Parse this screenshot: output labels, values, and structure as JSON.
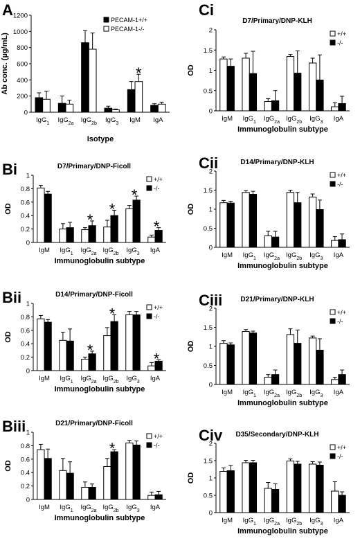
{
  "chart_data": [
    {
      "id": "A",
      "type": "bar",
      "panel_label": "A",
      "title": "",
      "xlabel": "Isotype",
      "ylabel": "Ab conc. (µg/mL)",
      "ylim": [
        0,
        1200
      ],
      "yticks": [
        "0",
        "200",
        "400",
        "600",
        "800",
        "1000",
        "1200"
      ],
      "categories": [
        "IgG1",
        "IgG2a",
        "IgG2b",
        "IgG3",
        "IgM",
        "IgA"
      ],
      "series": [
        {
          "name": "PECAM-1+/+",
          "color": "#000000",
          "values": [
            180,
            110,
            860,
            50,
            280,
            85
          ],
          "errors": [
            60,
            90,
            150,
            25,
            100,
            20
          ]
        },
        {
          "name": "PECAM-1-/-",
          "color": "#ffffff",
          "values": [
            160,
            100,
            780,
            30,
            380,
            100
          ],
          "errors": [
            100,
            50,
            200,
            10,
            90,
            25
          ]
        }
      ],
      "significant": [
        4
      ],
      "legend_position": "top-right"
    },
    {
      "id": "Bi",
      "type": "bar",
      "panel_label": "Bi",
      "title": "D7/Primary/DNP-Ficoll",
      "xlabel": "Immunoglobulin subtype",
      "ylabel": "OD",
      "ylim": [
        0,
        1
      ],
      "yticks": [
        "0",
        "0.2",
        "0.4",
        "0.6",
        "0.8",
        "1"
      ],
      "categories": [
        "IgM",
        "IgG1",
        "IgG2a",
        "IgG2b",
        "IgG3",
        "IgA"
      ],
      "series": [
        {
          "name": "+/+",
          "color": "#ffffff",
          "values": [
            0.81,
            0.2,
            0.19,
            0.23,
            0.5,
            0.08
          ],
          "errors": [
            0.04,
            0.08,
            0.03,
            0.1,
            0.05,
            0.03
          ]
        },
        {
          "name": "-/-",
          "color": "#000000",
          "values": [
            0.72,
            0.22,
            0.25,
            0.4,
            0.63,
            0.18
          ],
          "errors": [
            0.04,
            0.08,
            0.07,
            0.08,
            0.06,
            0.04
          ]
        }
      ],
      "significant": [
        2,
        3,
        4,
        5
      ],
      "legend_position": "top-right"
    },
    {
      "id": "Bii",
      "type": "bar",
      "panel_label": "Bii",
      "title": "D14/Primary/DNP-Ficoll",
      "xlabel": "Immunoglobulin subtype",
      "ylabel": "OD",
      "ylim": [
        0,
        1
      ],
      "yticks": [
        "0",
        "0.2",
        "0.4",
        "0.6",
        "0.8",
        "1"
      ],
      "categories": [
        "IgM",
        "IgG1",
        "IgG2a",
        "IgG2b",
        "IgG3",
        "IgA"
      ],
      "series": [
        {
          "name": "+/+",
          "color": "#ffffff",
          "values": [
            0.77,
            0.45,
            0.17,
            0.52,
            0.83,
            0.07
          ],
          "errors": [
            0.05,
            0.12,
            0.03,
            0.12,
            0.05,
            0.05
          ]
        },
        {
          "name": "-/-",
          "color": "#000000",
          "values": [
            0.72,
            0.44,
            0.25,
            0.73,
            0.83,
            0.14
          ],
          "errors": [
            0.04,
            0.18,
            0.04,
            0.1,
            0.05,
            0.02
          ]
        }
      ],
      "significant": [
        2,
        3,
        5
      ],
      "legend_position": "top-right"
    },
    {
      "id": "Biii",
      "type": "bar",
      "panel_label": "Biii",
      "title": "D21/Primary/DNP-Ficoll",
      "xlabel": "Immunoglobulin subtype",
      "ylabel": "OD",
      "ylim": [
        0,
        1
      ],
      "yticks": [
        "0",
        "0.2",
        "0.4",
        "0.6",
        "0.8",
        "1"
      ],
      "categories": [
        "IgM",
        "IgG1",
        "IgG2a",
        "IgG2b",
        "IgG3",
        "IgA"
      ],
      "series": [
        {
          "name": "+/+",
          "color": "#ffffff",
          "values": [
            0.74,
            0.43,
            0.18,
            0.49,
            0.84,
            0.06
          ],
          "errors": [
            0.08,
            0.18,
            0.08,
            0.12,
            0.04,
            0.05
          ]
        },
        {
          "name": "-/-",
          "color": "#000000",
          "values": [
            0.61,
            0.39,
            0.18,
            0.71,
            0.81,
            0.07
          ],
          "errors": [
            0.14,
            0.17,
            0.05,
            0.03,
            0.06,
            0.05
          ]
        }
      ],
      "significant": [
        3
      ],
      "legend_position": "top-right"
    },
    {
      "id": "Ci",
      "type": "bar",
      "panel_label": "Ci",
      "title": "D7/Primary/DNP-KLH",
      "xlabel": "Immunoglobulin subtype",
      "ylabel": "OD",
      "ylim": [
        0,
        2
      ],
      "yticks": [
        "0",
        "0.5",
        "1",
        "1.5",
        "2"
      ],
      "categories": [
        "IgM",
        "IgG1",
        "IgG2a",
        "IgG2b",
        "IgG3",
        "IgA"
      ],
      "series": [
        {
          "name": "+/+",
          "color": "#ffffff",
          "values": [
            1.28,
            1.3,
            0.23,
            1.34,
            1.18,
            0.1
          ],
          "errors": [
            0.05,
            0.12,
            0.07,
            0.05,
            0.12,
            0.1
          ]
        },
        {
          "name": "-/-",
          "color": "#000000",
          "values": [
            1.1,
            0.92,
            0.25,
            0.93,
            0.76,
            0.18
          ],
          "errors": [
            0.18,
            0.55,
            0.25,
            0.55,
            0.62,
            0.18
          ]
        }
      ],
      "significant": [],
      "legend_position": "top-right"
    },
    {
      "id": "Cii",
      "type": "bar",
      "panel_label": "Cii",
      "title": "D14/Primary/DNP-KLH",
      "xlabel": "Immunoglobulin subtype",
      "ylabel": "OD",
      "ylim": [
        0,
        2
      ],
      "yticks": [
        "0",
        "0.5",
        "1",
        "1.5",
        "2"
      ],
      "categories": [
        "IgM",
        "IgG1",
        "IgG2a",
        "IgG2b",
        "IgG3",
        "IgA"
      ],
      "series": [
        {
          "name": "+/+",
          "color": "#ffffff",
          "values": [
            1.17,
            1.44,
            0.3,
            1.44,
            1.32,
            0.18
          ],
          "errors": [
            0.06,
            0.05,
            0.12,
            0.06,
            0.08,
            0.1
          ]
        },
        {
          "name": "-/-",
          "color": "#000000",
          "values": [
            1.16,
            1.39,
            0.27,
            1.17,
            0.99,
            0.2
          ],
          "errors": [
            0.05,
            0.08,
            0.15,
            0.27,
            0.25,
            0.15
          ]
        }
      ],
      "significant": [],
      "legend_position": "top-right"
    },
    {
      "id": "Ciii",
      "type": "bar",
      "panel_label": "Ciii",
      "title": "D21/Primary/DNP-KLH",
      "xlabel": "Immunoglobulin subtype",
      "ylabel": "OD",
      "ylim": [
        0,
        2
      ],
      "yticks": [
        "0",
        "0.5",
        "1",
        "1.5",
        "2"
      ],
      "categories": [
        "IgM",
        "IgG1",
        "IgG2a",
        "IgG2b",
        "IgG3",
        "IgA"
      ],
      "series": [
        {
          "name": "+/+",
          "color": "#ffffff",
          "values": [
            1.08,
            1.39,
            0.19,
            1.31,
            1.22,
            0.13
          ],
          "errors": [
            0.07,
            0.05,
            0.07,
            0.15,
            0.05,
            0.06
          ]
        },
        {
          "name": "-/-",
          "color": "#000000",
          "values": [
            1.04,
            1.35,
            0.26,
            1.08,
            0.9,
            0.26
          ],
          "errors": [
            0.05,
            0.05,
            0.12,
            0.35,
            0.3,
            0.12
          ]
        }
      ],
      "significant": [],
      "legend_position": "top-right"
    },
    {
      "id": "Civ",
      "type": "bar",
      "panel_label": "Civ",
      "title": "D35/Secondary/DNP-KLH",
      "xlabel": "Immunoglobulin subtype",
      "ylabel": "OD",
      "ylim": [
        0,
        2
      ],
      "yticks": [
        "0",
        "0.5",
        "1",
        "1.5",
        "2"
      ],
      "categories": [
        "IgM",
        "IgG1",
        "IgG2a",
        "IgG2b",
        "IgG3",
        "IgA"
      ],
      "series": [
        {
          "name": "+/+",
          "color": "#ffffff",
          "values": [
            1.19,
            1.44,
            0.7,
            1.49,
            1.4,
            0.62
          ],
          "errors": [
            0.1,
            0.07,
            0.17,
            0.06,
            0.07,
            0.27
          ]
        },
        {
          "name": "-/-",
          "color": "#000000",
          "values": [
            1.21,
            1.44,
            0.67,
            1.4,
            1.37,
            0.5
          ],
          "errors": [
            0.15,
            0.07,
            0.16,
            0.08,
            0.09,
            0.1
          ]
        }
      ],
      "significant": [],
      "legend_position": "top-right"
    }
  ]
}
